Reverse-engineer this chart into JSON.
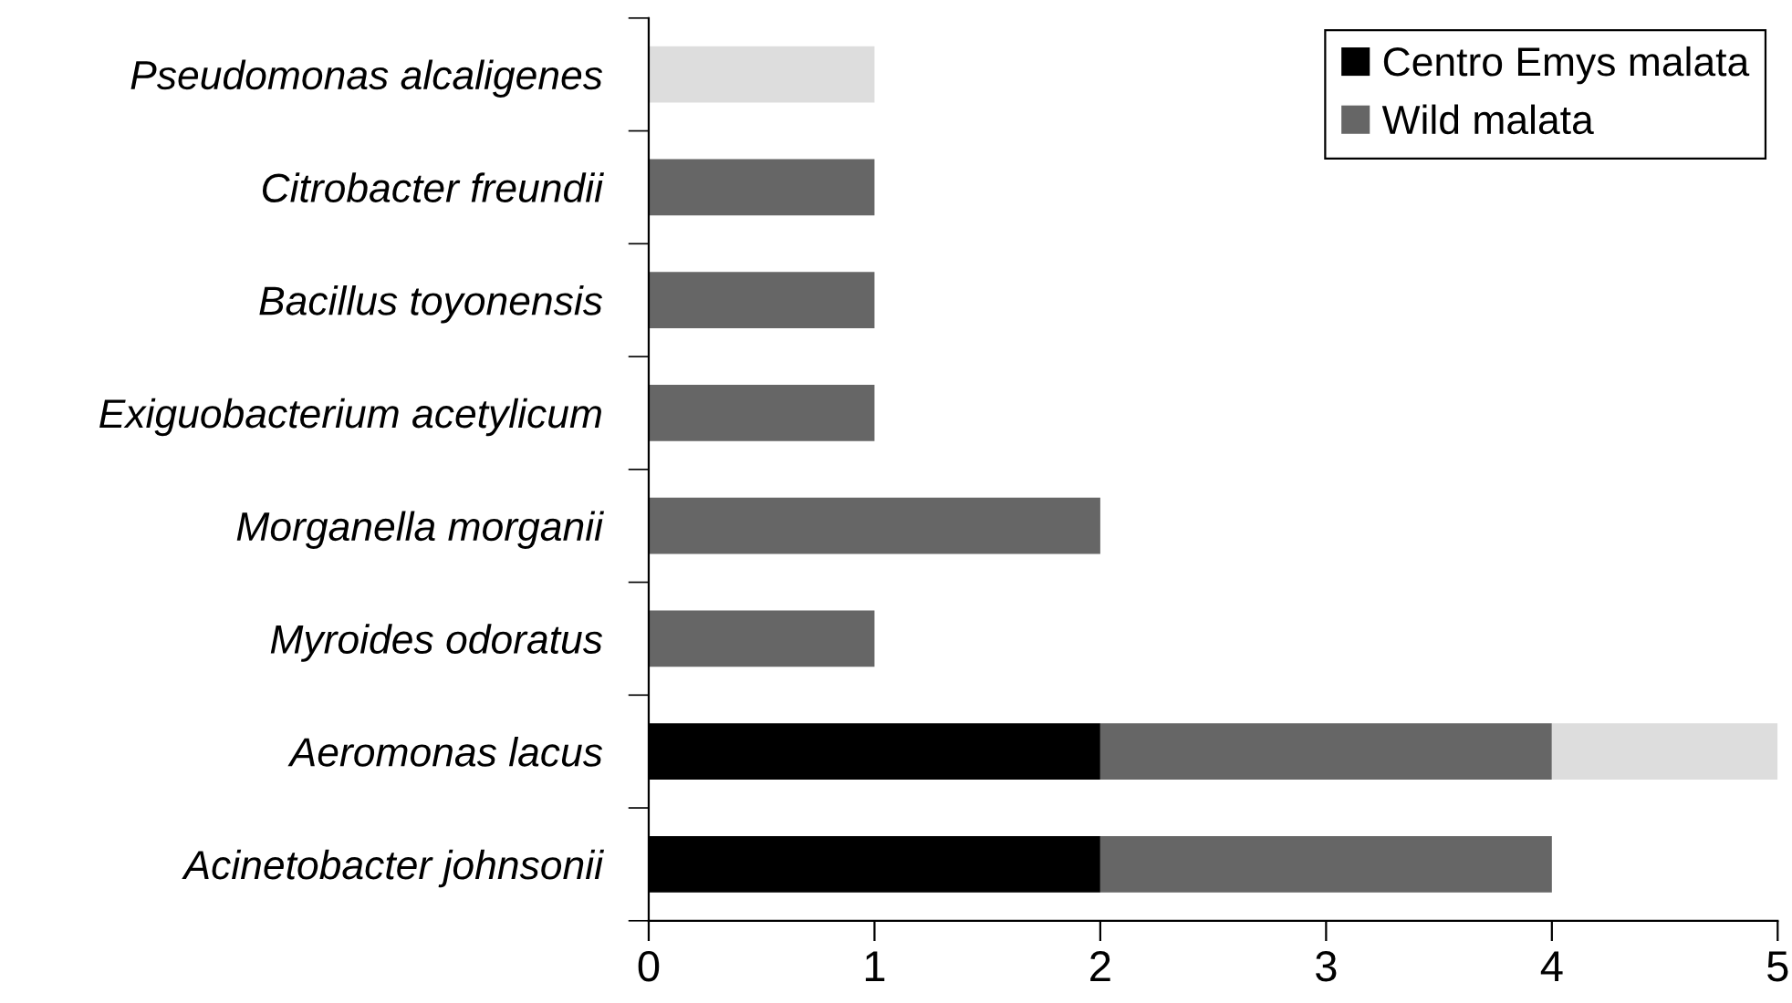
{
  "chart_data": {
    "type": "bar",
    "orientation": "horizontal",
    "stacked": true,
    "categories": [
      "Pseudomonas alcaligenes",
      "Citrobacter freundii",
      "Bacillus toyonensis",
      "Exiguobacterium acetylicum",
      "Morganella morganii",
      "Myroides odoratus",
      "Aeromonas lacus",
      "Acinetobacter johnsonii"
    ],
    "series": [
      {
        "name": "Centro Emys malata",
        "color": "#000000",
        "values": [
          null,
          null,
          null,
          null,
          null,
          null,
          2,
          2
        ]
      },
      {
        "name": "Wild malata",
        "color": "#666666",
        "values": [
          null,
          1,
          1,
          1,
          2,
          1,
          2,
          2
        ]
      },
      {
        "color": "#dddddd",
        "values": [
          1,
          null,
          null,
          null,
          null,
          null,
          1,
          null
        ]
      }
    ],
    "xlim": [
      0,
      5
    ],
    "xticks": [
      0,
      1,
      2,
      3,
      4,
      5
    ],
    "grid": false,
    "legend": "top right"
  }
}
